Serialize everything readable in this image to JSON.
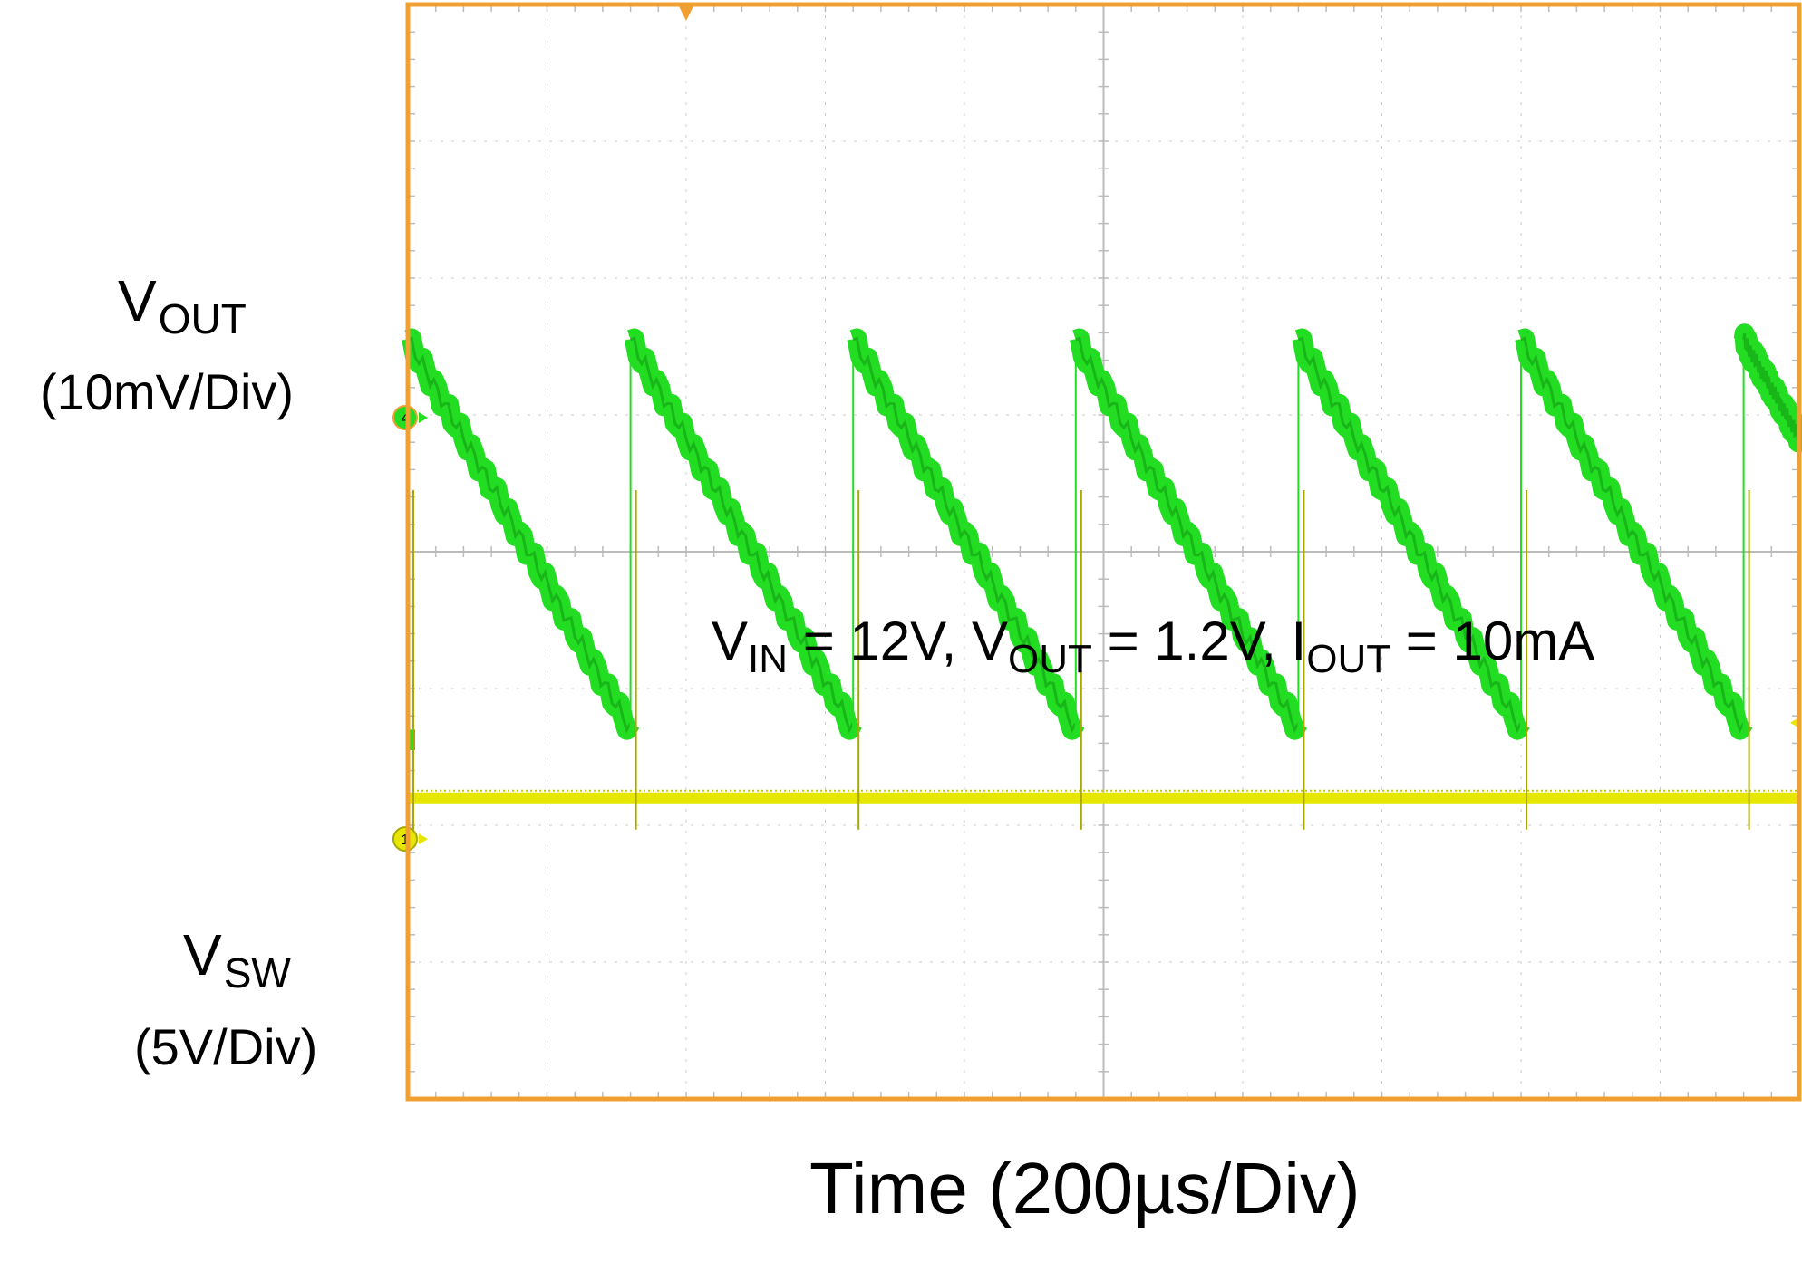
{
  "chart_data": {
    "type": "line",
    "title": "",
    "xlabel": "Time (200µs/Div)",
    "x_divisions": 10,
    "y_divisions": 8,
    "grid": true,
    "annotation": {
      "parts": [
        {
          "t": "V"
        },
        {
          "sub": "IN"
        },
        {
          "t": " = 12V, V"
        },
        {
          "sub": "OUT"
        },
        {
          "t": " = 1.2V, I"
        },
        {
          "sub": "OUT"
        },
        {
          "t": " = 10mA"
        }
      ],
      "text": "VIN = 12V, VOUT = 1.2V, IOUT = 10mA"
    },
    "series": [
      {
        "name": "VOUT",
        "name_main": "V",
        "name_sub": "OUT",
        "scale": "(10mV/Div)",
        "channel_marker": "4",
        "color": "#22dd22",
        "waveform": "sawtooth",
        "period_div": 1.6,
        "peak_div": 1.55,
        "trough_div": -1.3,
        "jumps_div": [
          0.0,
          1.6,
          3.2,
          4.8,
          6.4,
          8.0,
          9.6
        ]
      },
      {
        "name": "VSW",
        "name_main": "V",
        "name_sub": "SW",
        "scale": "(5V/Div)",
        "channel_marker": "1",
        "color": "#e6e600",
        "waveform": "baseline-with-spikes",
        "baseline_div": -1.8,
        "spike_peak_div": 0.45,
        "spikes_div": [
          0.0,
          1.6,
          3.2,
          4.8,
          6.4,
          8.0,
          9.6
        ]
      }
    ]
  },
  "colors": {
    "frame": "#f0a030",
    "grid": "#cccccc",
    "vout": "#22dd22",
    "vsw": "#e6e600"
  }
}
